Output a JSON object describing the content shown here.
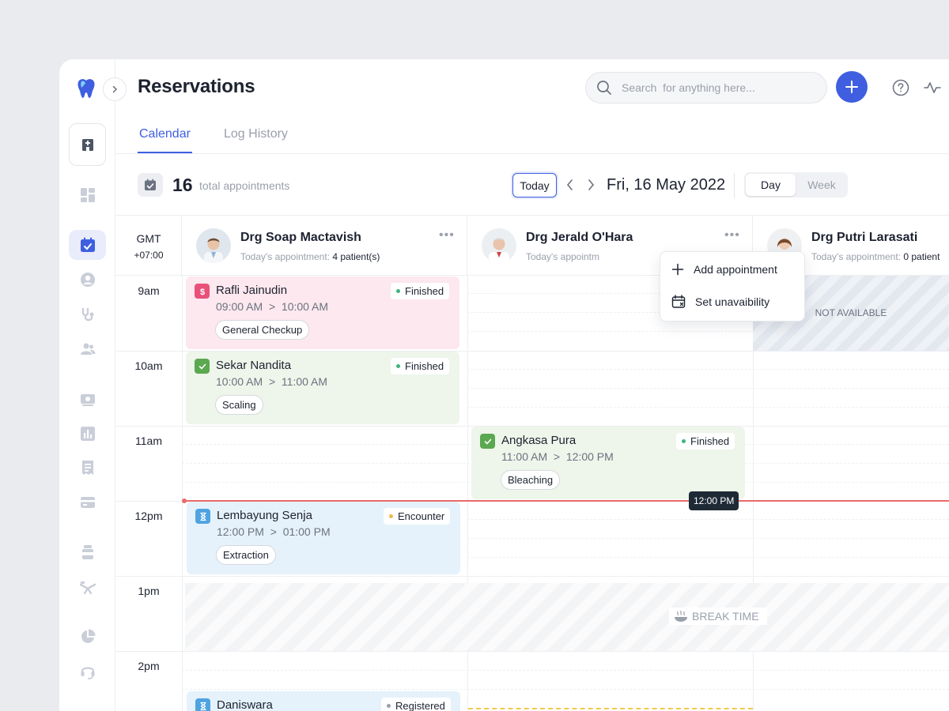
{
  "header": {
    "title": "Reservations",
    "search_placeholder": "Search  for anything here..."
  },
  "tabs": [
    {
      "label": "Calendar",
      "active": true
    },
    {
      "label": "Log History",
      "active": false
    }
  ],
  "summary": {
    "count": "16",
    "label": "total appointments"
  },
  "date_nav": {
    "today_label": "Today",
    "date": "Fri, 16 May 2022",
    "view_day": "Day",
    "view_week": "Week",
    "selected_view": "Day"
  },
  "timezone": {
    "line1": "GMT",
    "line2": "+07:00"
  },
  "time_slots": [
    "9am",
    "10am",
    "11am",
    "12pm",
    "1pm",
    "2pm"
  ],
  "doctors": [
    {
      "name": "Drg Soap Mactavish",
      "sub_label": "Today's appointment:",
      "sub_value": "4 patient(s)"
    },
    {
      "name": "Drg Jerald O'Hara",
      "sub_label": "Today's appointm",
      "sub_value": ""
    },
    {
      "name": "Drg Putri Larasati",
      "sub_label": "Today's appointment:",
      "sub_value": "0 patient"
    }
  ],
  "appointments": [
    {
      "patient": "Rafli Jainudin",
      "start": "09:00 AM",
      "end": "10:00 AM",
      "treatment": "General Checkup",
      "status": "Finished",
      "status_color": "#3fb27f",
      "color": "pink",
      "icon": "dollar-icon"
    },
    {
      "patient": "Sekar Nandita",
      "start": "10:00 AM",
      "end": "11:00 AM",
      "treatment": "Scaling",
      "status": "Finished",
      "status_color": "#3fb27f",
      "color": "green",
      "icon": "check-icon"
    },
    {
      "patient": "Angkasa Pura",
      "start": "11:00 AM",
      "end": "12:00 PM",
      "treatment": "Bleaching",
      "status": "Finished",
      "status_color": "#3fb27f",
      "color": "green",
      "icon": "check-icon"
    },
    {
      "patient": "Lembayung Senja",
      "start": "12:00 PM",
      "end": "01:00 PM",
      "treatment": "Extraction",
      "status": "Encounter",
      "status_color": "#f2b84b",
      "color": "blue",
      "icon": "hourglass-icon"
    },
    {
      "patient": "Daniswara",
      "start": "",
      "end": "",
      "treatment": "",
      "status": "Registered",
      "status_color": "#9aa0ab",
      "color": "blue",
      "icon": "hourglass-icon"
    }
  ],
  "time_separator": ">",
  "not_available": "NOT AVAILABLE",
  "break_time": "BREAK TIME",
  "current_time": "12:00 PM",
  "context_menu": {
    "add": "Add appointment",
    "unavailable": "Set unavaibility"
  },
  "colors": {
    "accent": "#3f5fe0",
    "now_line": "#e86a6a",
    "finished": "#3fb27f",
    "encounter": "#f2b84b"
  }
}
